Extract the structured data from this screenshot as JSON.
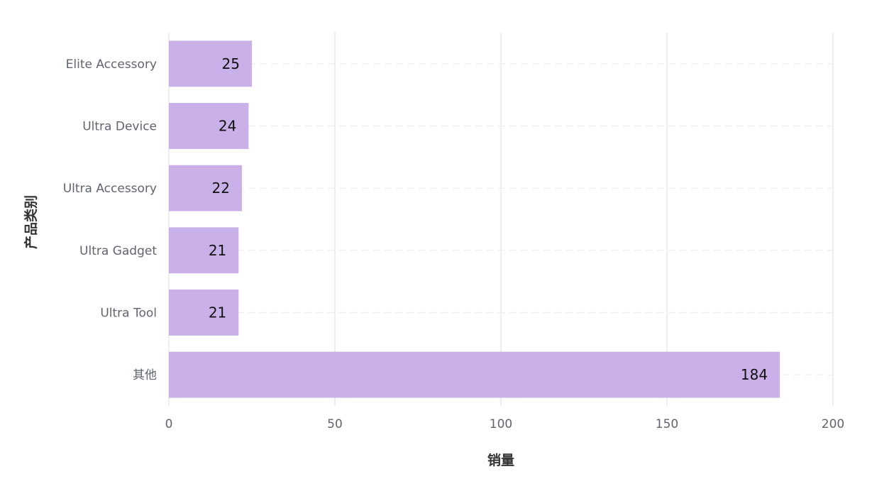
{
  "chart_data": {
    "type": "bar",
    "orientation": "horizontal",
    "categories": [
      "Elite Accessory",
      "Ultra Device",
      "Ultra Accessory",
      "Ultra Gadget",
      "Ultra Tool",
      "其他"
    ],
    "values": [
      25,
      24,
      22,
      21,
      21,
      184
    ],
    "xlabel": "销量",
    "ylabel": "产品类别",
    "xlim": [
      0,
      200
    ],
    "xticks": [
      0,
      50,
      100,
      150,
      200
    ],
    "grid": true,
    "data_labels": true,
    "bar_color": "#c9b0e8",
    "grid_color": "#e8e8ee"
  }
}
